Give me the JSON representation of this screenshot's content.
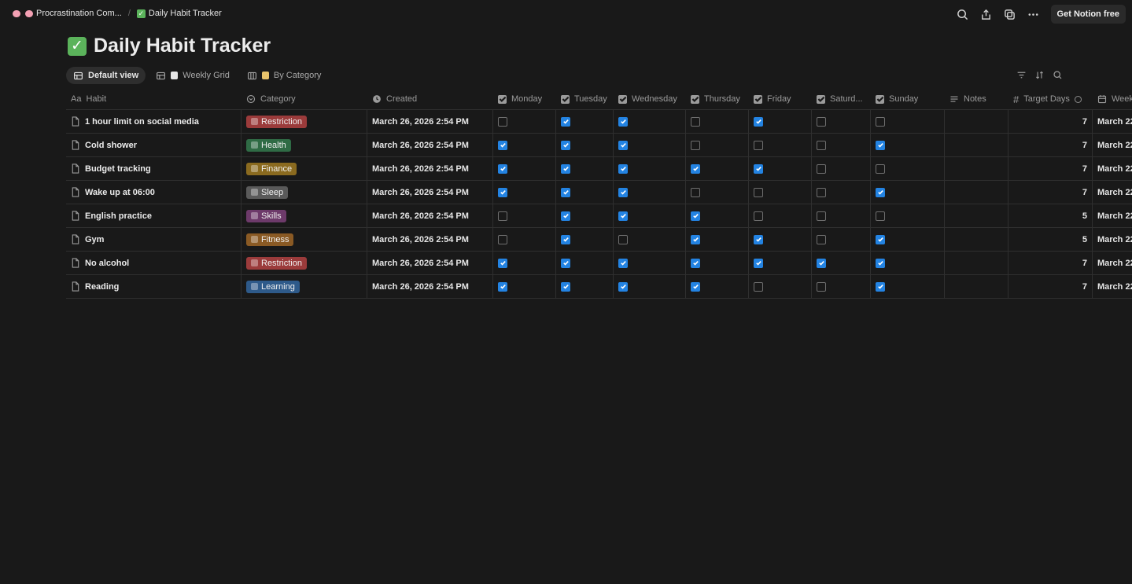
{
  "breadcrumb": {
    "workspace": "Procrastination Com...",
    "separator": "/",
    "page": "Daily Habit Tracker"
  },
  "topbar": {
    "cta_label": "Get Notion free",
    "icons": [
      "search-icon",
      "share-icon",
      "duplicate-icon",
      "more-icon"
    ]
  },
  "page": {
    "title": "Daily Habit Tracker",
    "icon": "check-mark-icon"
  },
  "views": {
    "tabs": [
      {
        "label": "Default view",
        "active": true,
        "icon": "table-icon"
      },
      {
        "label": "Weekly Grid",
        "active": false,
        "icon": "table-icon"
      },
      {
        "label": "By Category",
        "active": false,
        "icon": "board-icon"
      }
    ],
    "tools": [
      "filter-icon",
      "sort-icon",
      "search-icon"
    ]
  },
  "columns": {
    "habit": "Habit",
    "category": "Category",
    "created": "Created",
    "monday": "Monday",
    "tuesday": "Tuesday",
    "wednesday": "Wednesday",
    "thursday": "Thursday",
    "friday": "Friday",
    "saturday": "Saturd...",
    "sunday": "Sunday",
    "notes": "Notes",
    "target": "Target Days",
    "week": "Week"
  },
  "category_colors": {
    "Restriction": "#9b3b3b",
    "Health": "#2f6b45",
    "Finance": "#8a6a1f",
    "Sleep": "#5a5a5a",
    "Skills": "#6d3a6a",
    "Fitness": "#8a5a24",
    "Learning": "#2e5a8a"
  },
  "rows": [
    {
      "habit": "1 hour limit on social media",
      "category": "Restriction",
      "created": "March 26, 2026 2:54 PM",
      "days": [
        false,
        true,
        true,
        false,
        true,
        false,
        false
      ],
      "target": "7",
      "week": "March 22"
    },
    {
      "habit": "Cold shower",
      "category": "Health",
      "created": "March 26, 2026 2:54 PM",
      "days": [
        true,
        true,
        true,
        false,
        false,
        false,
        true
      ],
      "target": "7",
      "week": "March 22"
    },
    {
      "habit": "Budget tracking",
      "category": "Finance",
      "created": "March 26, 2026 2:54 PM",
      "days": [
        true,
        true,
        true,
        true,
        true,
        false,
        false
      ],
      "target": "7",
      "week": "March 22"
    },
    {
      "habit": "Wake up at 06:00",
      "category": "Sleep",
      "created": "March 26, 2026 2:54 PM",
      "days": [
        true,
        true,
        true,
        false,
        false,
        false,
        true
      ],
      "target": "7",
      "week": "March 22"
    },
    {
      "habit": "English practice",
      "category": "Skills",
      "created": "March 26, 2026 2:54 PM",
      "days": [
        false,
        true,
        true,
        true,
        false,
        false,
        false
      ],
      "target": "5",
      "week": "March 22"
    },
    {
      "habit": "Gym",
      "category": "Fitness",
      "created": "March 26, 2026 2:54 PM",
      "days": [
        false,
        true,
        false,
        true,
        true,
        false,
        true
      ],
      "target": "5",
      "week": "March 22"
    },
    {
      "habit": "No alcohol",
      "category": "Restriction",
      "created": "March 26, 2026 2:54 PM",
      "days": [
        true,
        true,
        true,
        true,
        true,
        true,
        true
      ],
      "target": "7",
      "week": "March 22"
    },
    {
      "habit": "Reading",
      "category": "Learning",
      "created": "March 26, 2026 2:54 PM",
      "days": [
        true,
        true,
        true,
        true,
        false,
        false,
        true
      ],
      "target": "7",
      "week": "March 22"
    }
  ]
}
